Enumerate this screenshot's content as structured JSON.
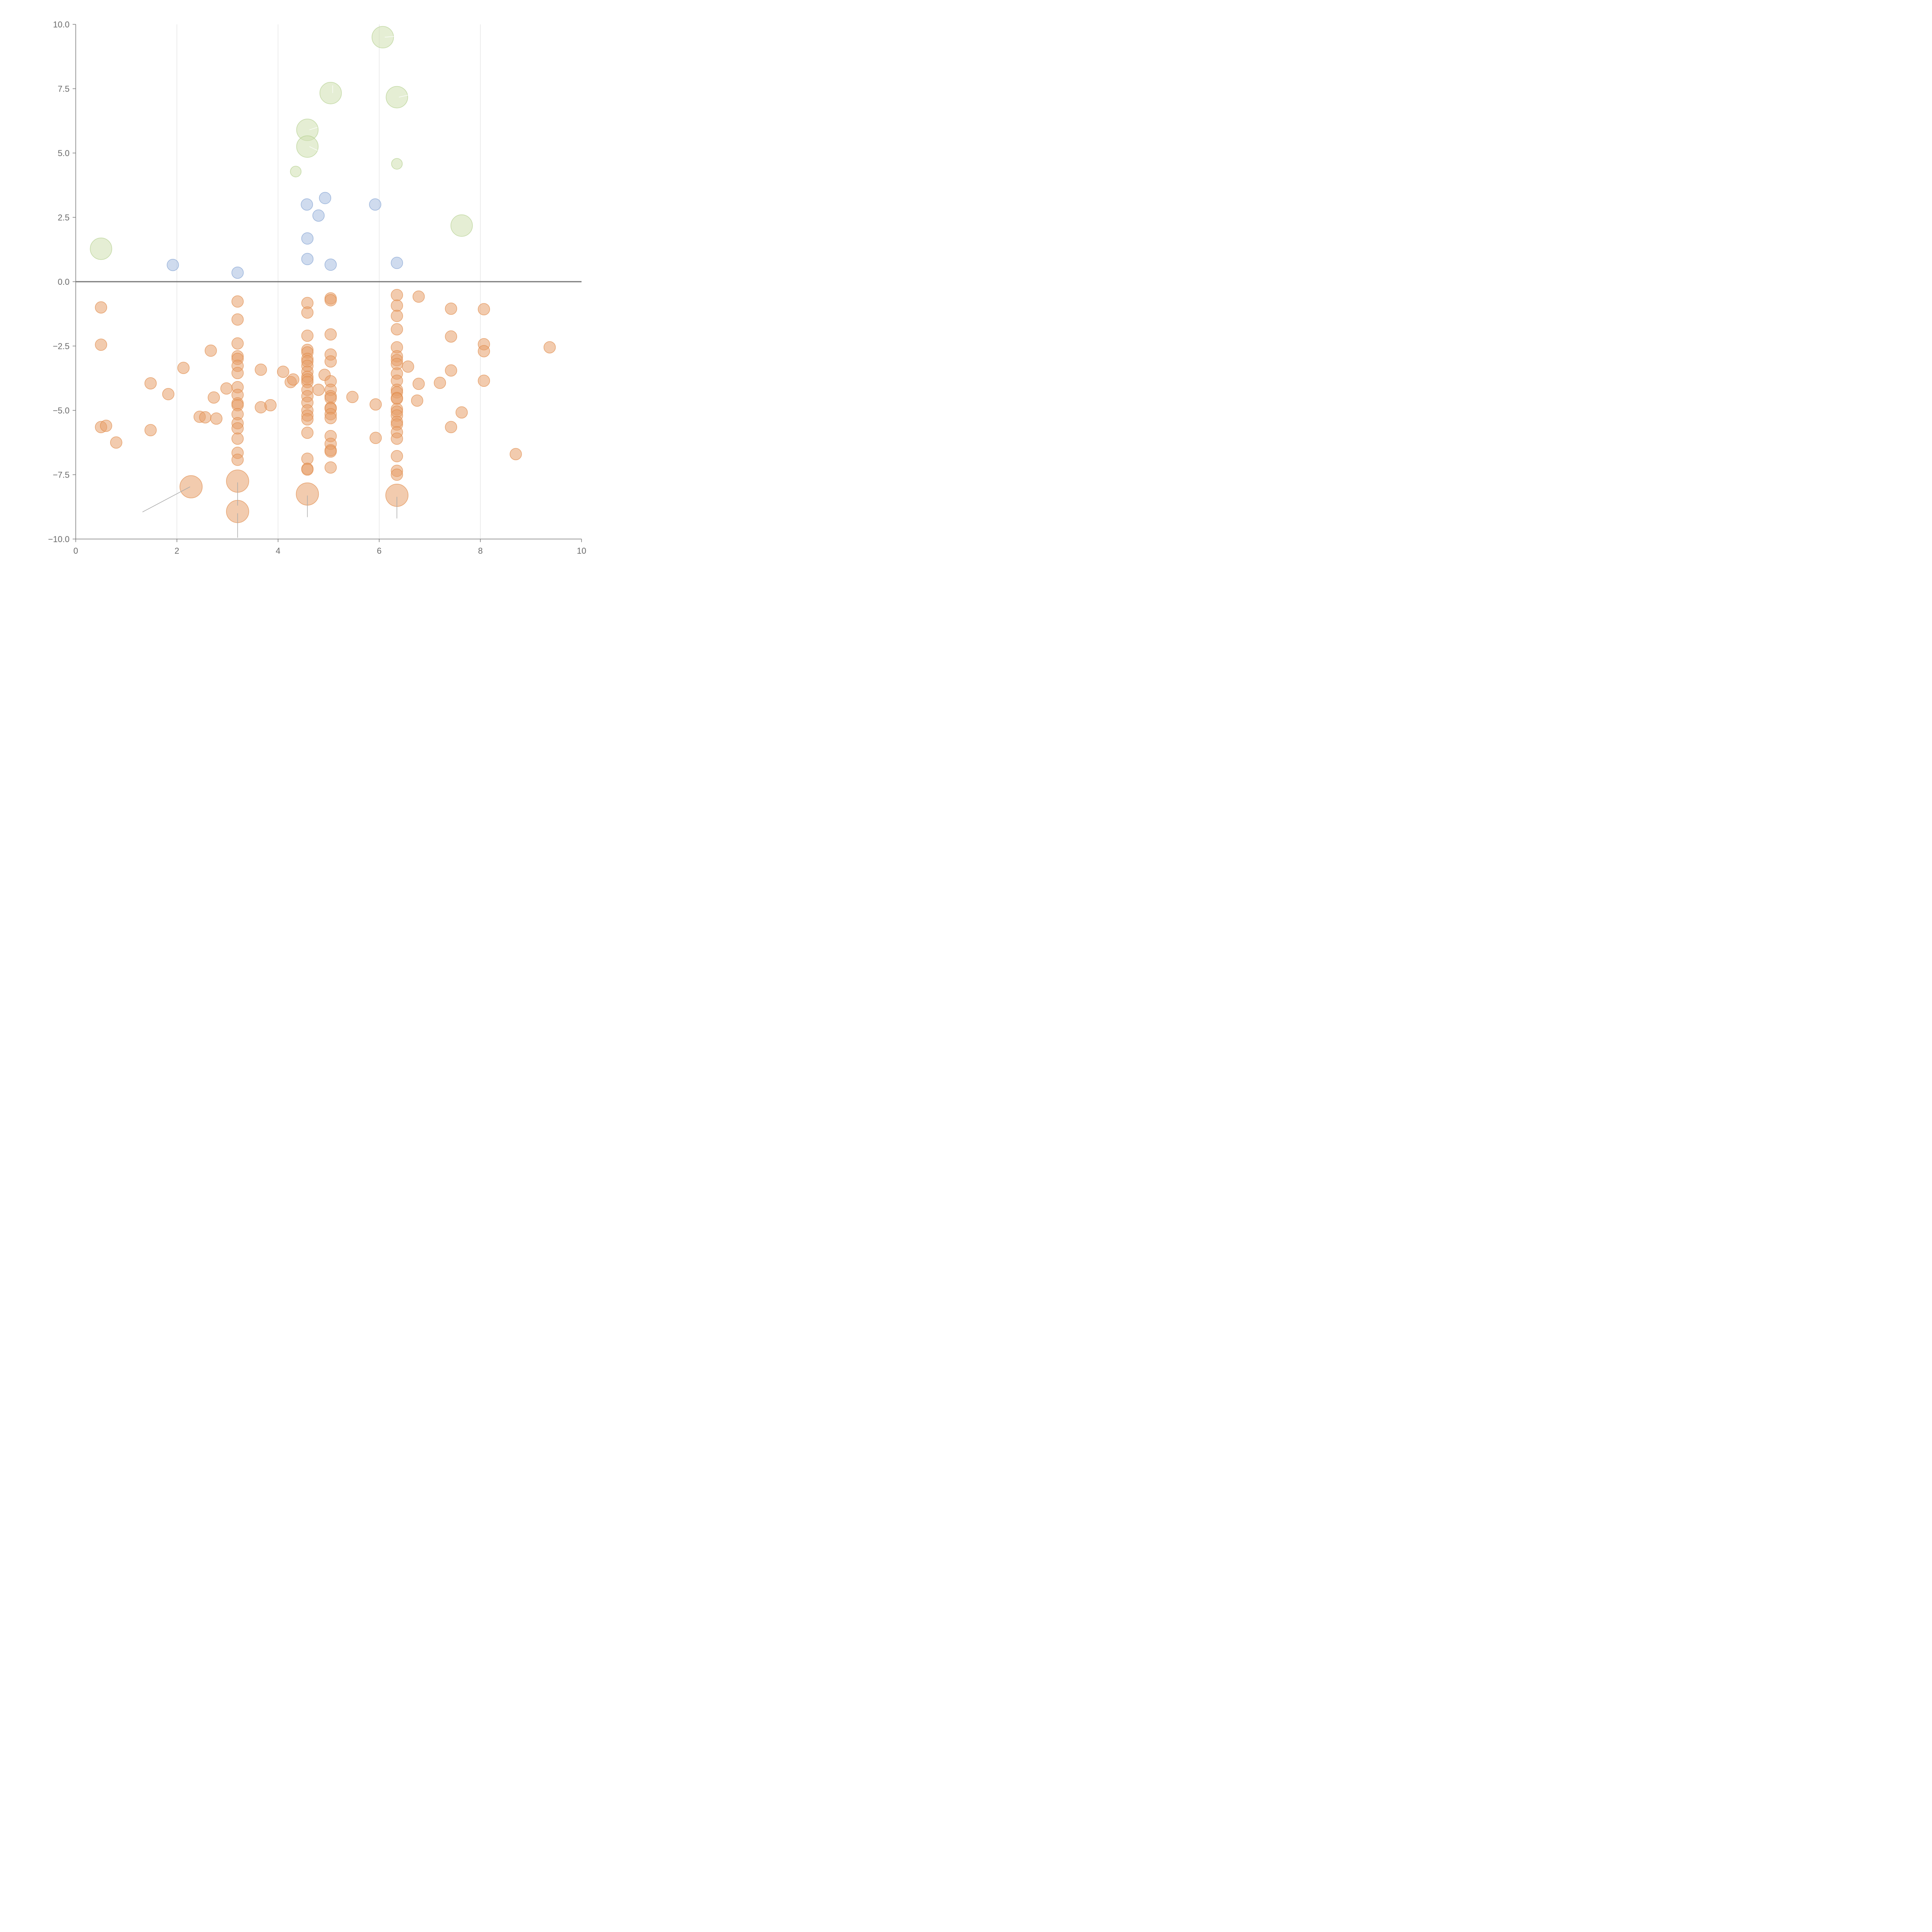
{
  "chart_data": {
    "type": "scatter",
    "xlim": [
      0,
      10
    ],
    "ylim": [
      -10,
      10
    ],
    "x_ticks": [
      0,
      2,
      4,
      6,
      8,
      10
    ],
    "x_tick_labels": [
      "0",
      "2",
      "4",
      "6",
      "8",
      "10"
    ],
    "y_ticks": [
      -10,
      -7.5,
      -5,
      -2.5,
      0,
      2.5,
      5,
      7.5,
      10
    ],
    "y_tick_labels": [
      "−10.0",
      "−7.5",
      "−5.0",
      "−2.5",
      "0.0",
      "2.5",
      "5.0",
      "7.5",
      "10.0"
    ],
    "vertical_grid": true,
    "zero_line": true,
    "series": [
      {
        "color": "#e8a06c",
        "stroke": "#e08a48",
        "points": [
          [
            0.5,
            -1
          ],
          [
            0.5,
            -2.45
          ],
          [
            0.5,
            -5.65
          ],
          [
            0.6,
            -5.6
          ],
          [
            0.8,
            -6.25
          ],
          [
            1.48,
            -3.95
          ],
          [
            1.48,
            -5.77
          ],
          [
            1.83,
            -4.37
          ],
          [
            2.13,
            -3.35
          ],
          [
            2.45,
            -5.25
          ],
          [
            2.56,
            -5.27
          ],
          [
            2.67,
            -2.68
          ],
          [
            2.73,
            -4.5
          ],
          [
            2.78,
            -5.32
          ],
          [
            2.98,
            -4.15
          ],
          [
            3.2,
            -0.77
          ],
          [
            3.2,
            -1.47
          ],
          [
            3.2,
            -2.4
          ],
          [
            3.2,
            -2.9
          ],
          [
            3.2,
            -3.0
          ],
          [
            3.2,
            -3.27
          ],
          [
            3.2,
            -3.55
          ],
          [
            3.2,
            -4.1
          ],
          [
            3.2,
            -4.4
          ],
          [
            3.2,
            -4.73
          ],
          [
            3.2,
            -4.8
          ],
          [
            3.2,
            -5.15
          ],
          [
            3.2,
            -5.5
          ],
          [
            3.2,
            -5.7
          ],
          [
            3.2,
            -6.1
          ],
          [
            3.2,
            -6.65
          ],
          [
            3.2,
            -6.92
          ],
          [
            3.66,
            -3.42
          ],
          [
            3.66,
            -4.88
          ],
          [
            3.85,
            -4.8
          ],
          [
            4.1,
            -3.5
          ],
          [
            4.25,
            -3.9
          ],
          [
            4.3,
            -3.8
          ],
          [
            4.58,
            -0.83
          ],
          [
            4.58,
            -1.2
          ],
          [
            4.58,
            -2.1
          ],
          [
            4.58,
            -2.65
          ],
          [
            4.58,
            -2.75
          ],
          [
            4.58,
            -3.0
          ],
          [
            4.58,
            -3.1
          ],
          [
            4.58,
            -3.27
          ],
          [
            4.58,
            -3.5
          ],
          [
            4.58,
            -3.7
          ],
          [
            4.58,
            -3.8
          ],
          [
            4.58,
            -3.9
          ],
          [
            4.58,
            -4.2
          ],
          [
            4.58,
            -4.45
          ],
          [
            4.58,
            -4.7
          ],
          [
            4.58,
            -5.0
          ],
          [
            4.58,
            -5.2
          ],
          [
            4.58,
            -5.35
          ],
          [
            4.58,
            -5.87
          ],
          [
            4.58,
            -6.88
          ],
          [
            4.58,
            -7.27
          ],
          [
            4.58,
            -7.3
          ],
          [
            4.8,
            -4.2
          ],
          [
            4.92,
            -3.62
          ],
          [
            5.04,
            -0.65
          ],
          [
            5.04,
            -0.72
          ],
          [
            5.04,
            -2.05
          ],
          [
            5.04,
            -2.83
          ],
          [
            5.04,
            -3.1
          ],
          [
            5.04,
            -3.87
          ],
          [
            5.04,
            -4.2
          ],
          [
            5.04,
            -4.45
          ],
          [
            5.04,
            -4.53
          ],
          [
            5.04,
            -4.9
          ],
          [
            5.04,
            -4.93
          ],
          [
            5.04,
            -5.15
          ],
          [
            5.04,
            -5.3
          ],
          [
            5.04,
            -6.0
          ],
          [
            5.04,
            -6.3
          ],
          [
            5.04,
            -6.55
          ],
          [
            5.04,
            -6.6
          ],
          [
            5.04,
            -7.22
          ],
          [
            5.47,
            -4.48
          ],
          [
            5.93,
            -4.77
          ],
          [
            5.93,
            -6.07
          ],
          [
            6.35,
            -0.52
          ],
          [
            6.35,
            -0.93
          ],
          [
            6.35,
            -1.33
          ],
          [
            6.35,
            -1.85
          ],
          [
            6.35,
            -2.55
          ],
          [
            6.35,
            -2.9
          ],
          [
            6.35,
            -3.05
          ],
          [
            6.35,
            -3.2
          ],
          [
            6.35,
            -3.57
          ],
          [
            6.35,
            -3.85
          ],
          [
            6.35,
            -4.2
          ],
          [
            6.35,
            -4.3
          ],
          [
            6.35,
            -4.52
          ],
          [
            6.35,
            -4.55
          ],
          [
            6.35,
            -4.95
          ],
          [
            6.35,
            -5.05
          ],
          [
            6.35,
            -5.2
          ],
          [
            6.35,
            -5.45
          ],
          [
            6.35,
            -5.55
          ],
          [
            6.35,
            -5.85
          ],
          [
            6.35,
            -6.1
          ],
          [
            6.35,
            -6.78
          ],
          [
            6.35,
            -7.35
          ],
          [
            6.35,
            -7.5
          ],
          [
            6.57,
            -3.3
          ],
          [
            6.75,
            -4.62
          ],
          [
            6.78,
            -0.58
          ],
          [
            6.78,
            -3.97
          ],
          [
            7.2,
            -3.93
          ],
          [
            7.42,
            -1.05
          ],
          [
            7.42,
            -2.13
          ],
          [
            7.42,
            -3.45
          ],
          [
            7.42,
            -5.65
          ],
          [
            7.63,
            -5.08
          ],
          [
            8.07,
            -1.07
          ],
          [
            8.07,
            -2.43
          ],
          [
            8.07,
            -2.7
          ],
          [
            8.07,
            -3.85
          ],
          [
            8.7,
            -6.7
          ],
          [
            9.37,
            -2.55
          ]
        ]
      },
      {
        "color": "#e8a06c",
        "stroke": "#e08a48",
        "points": [
          [
            2.28,
            -7.97
          ],
          [
            3.2,
            -7.75
          ],
          [
            3.2,
            -8.93
          ],
          [
            4.58,
            -8.25
          ],
          [
            6.35,
            -8.3
          ]
        ]
      },
      {
        "color": "#a8bde0",
        "stroke": "#7f9fd2",
        "points": [
          [
            1.92,
            0.65
          ],
          [
            3.2,
            0.35
          ],
          [
            4.57,
            3.0
          ],
          [
            4.58,
            1.68
          ],
          [
            4.58,
            0.88
          ],
          [
            4.8,
            2.57
          ],
          [
            4.93,
            3.25
          ],
          [
            5.04,
            0.66
          ],
          [
            5.92,
            3.0
          ],
          [
            6.35,
            0.73
          ]
        ]
      },
      {
        "color": "#cfe0b0",
        "stroke": "#b2cf8c",
        "points": [
          [
            4.35,
            4.28
          ],
          [
            6.35,
            4.58
          ]
        ]
      },
      {
        "color": "#cfe0b0",
        "stroke": "#b2cf8c",
        "points": [
          [
            0.5,
            1.28
          ],
          [
            4.58,
            5.9
          ],
          [
            4.58,
            5.25
          ],
          [
            5.04,
            7.33
          ],
          [
            6.07,
            9.5
          ],
          [
            6.35,
            7.17
          ],
          [
            7.63,
            2.18
          ]
        ]
      }
    ]
  }
}
